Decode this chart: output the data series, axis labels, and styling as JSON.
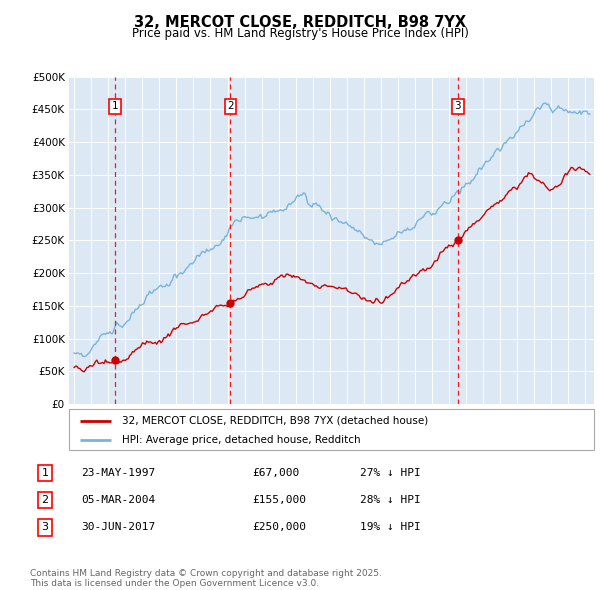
{
  "title": "32, MERCOT CLOSE, REDDITCH, B98 7YX",
  "subtitle": "Price paid vs. HM Land Registry's House Price Index (HPI)",
  "background_color": "#ffffff",
  "plot_bg_color": "#dce9f5",
  "hpi_color": "#7ab3d9",
  "price_color": "#cc0000",
  "ylim": [
    0,
    500000
  ],
  "yticks": [
    0,
    50000,
    100000,
    150000,
    200000,
    250000,
    300000,
    350000,
    400000,
    450000,
    500000
  ],
  "ytick_labels": [
    "£0",
    "£50K",
    "£100K",
    "£150K",
    "£200K",
    "£250K",
    "£300K",
    "£350K",
    "£400K",
    "£450K",
    "£500K"
  ],
  "xlim_start": 1994.7,
  "xlim_end": 2025.5,
  "sale_dates": [
    1997.39,
    2004.17,
    2017.5
  ],
  "sale_prices": [
    67000,
    155000,
    250000
  ],
  "sale_labels": [
    "1",
    "2",
    "3"
  ],
  "legend_line1": "32, MERCOT CLOSE, REDDITCH, B98 7YX (detached house)",
  "legend_line2": "HPI: Average price, detached house, Redditch",
  "table_rows": [
    [
      "1",
      "23-MAY-1997",
      "£67,000",
      "27% ↓ HPI"
    ],
    [
      "2",
      "05-MAR-2004",
      "£155,000",
      "28% ↓ HPI"
    ],
    [
      "3",
      "30-JUN-2017",
      "£250,000",
      "19% ↓ HPI"
    ]
  ],
  "footer": "Contains HM Land Registry data © Crown copyright and database right 2025.\nThis data is licensed under the Open Government Licence v3.0."
}
